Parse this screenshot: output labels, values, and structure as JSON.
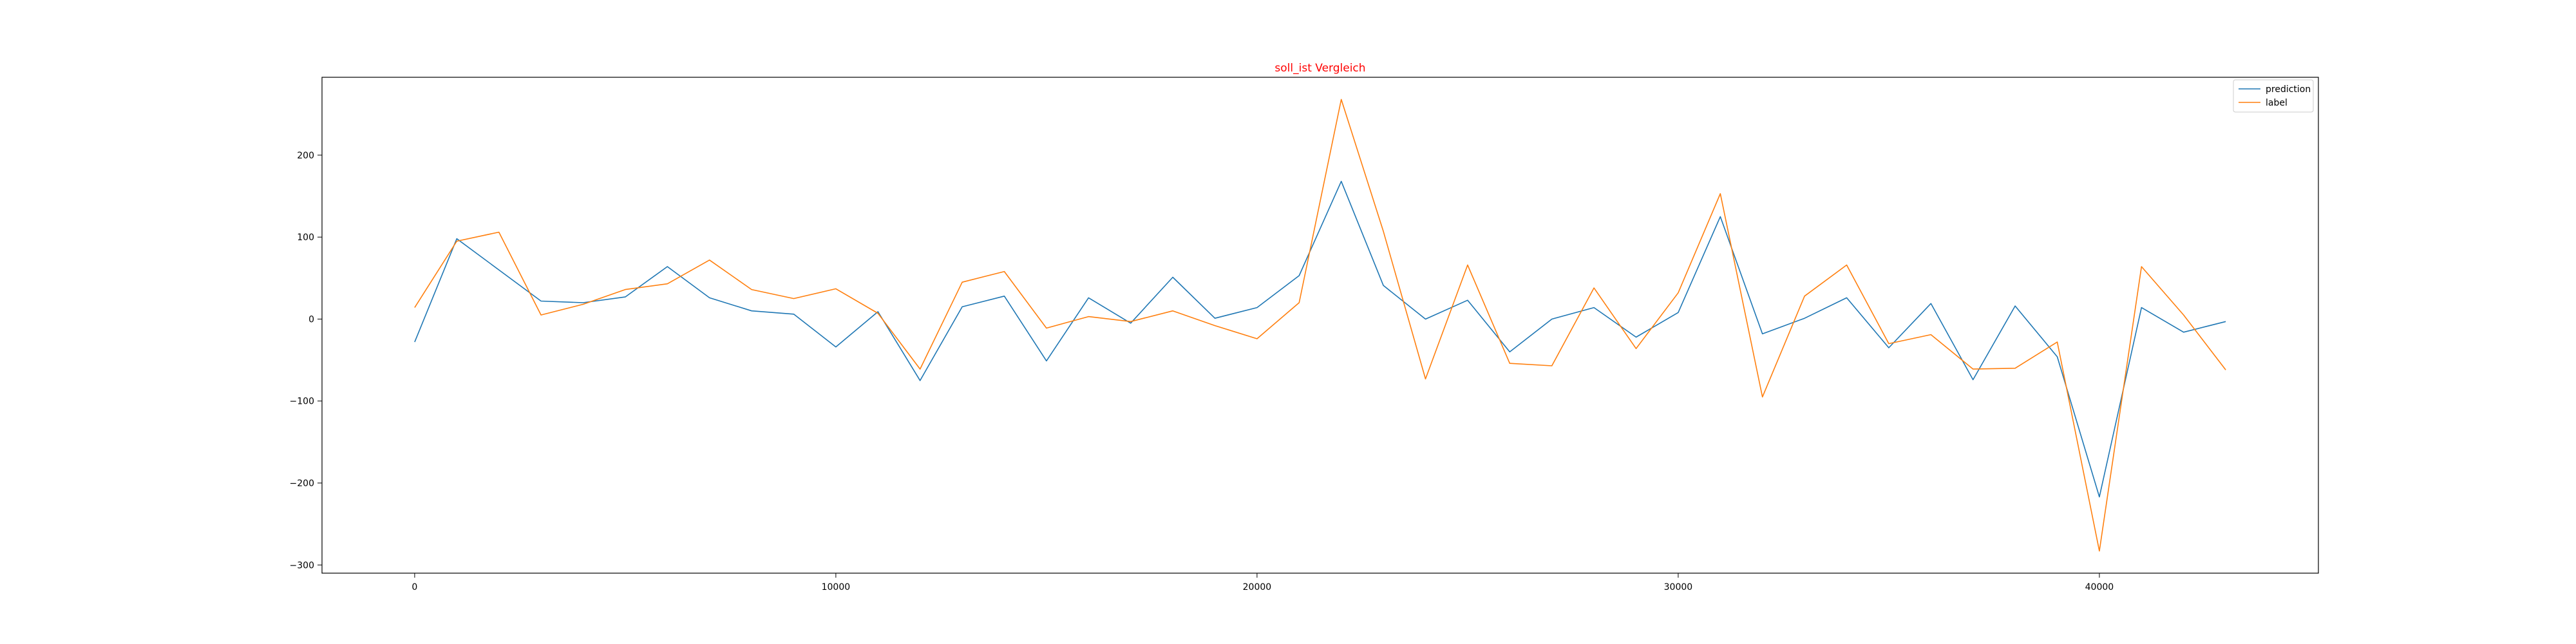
{
  "chart_data": {
    "type": "line",
    "title": "soll_ist Vergleich",
    "title_color": "#ff0000",
    "xlabel": "",
    "ylabel": "",
    "xlim": [
      -2200,
      45200
    ],
    "ylim": [
      -310,
      295
    ],
    "x_ticks": [
      0,
      10000,
      20000,
      30000,
      40000
    ],
    "y_ticks": [
      -300,
      -200,
      -100,
      0,
      100,
      200
    ],
    "grid": false,
    "legend_position": "top-right",
    "x": [
      0,
      1000,
      2000,
      3000,
      4000,
      5000,
      6000,
      7000,
      8000,
      9000,
      10000,
      11000,
      12000,
      13000,
      14000,
      15000,
      16000,
      17000,
      18000,
      19000,
      20000,
      21000,
      22000,
      23000,
      24000,
      25000,
      26000,
      27000,
      28000,
      29000,
      30000,
      31000,
      32000,
      33000,
      34000,
      35000,
      36000,
      37000,
      38000,
      39000,
      40000,
      41000,
      42000,
      43000
    ],
    "series": [
      {
        "name": "prediction",
        "color": "#1f77b4",
        "values": [
          -28,
          98,
          60,
          22,
          20,
          27,
          64,
          26,
          10,
          6,
          -34,
          9,
          -75,
          15,
          28,
          -51,
          26,
          -5,
          51,
          1,
          14,
          53,
          168,
          41,
          0,
          23,
          -40,
          0,
          14,
          -22,
          8,
          125,
          -18,
          1,
          26,
          -35,
          19,
          -74,
          16,
          -46,
          -217,
          14,
          -16,
          -3
        ]
      },
      {
        "name": "label",
        "color": "#ff7f0e",
        "values": [
          14,
          95,
          106,
          5,
          18,
          36,
          43,
          72,
          36,
          25,
          37,
          7,
          -61,
          45,
          58,
          -11,
          3,
          -3,
          10,
          -8,
          -24,
          20,
          268,
          107,
          -73,
          66,
          -54,
          -57,
          38,
          -36,
          32,
          153,
          -95,
          28,
          66,
          -30,
          -19,
          -61,
          -60,
          -28,
          -283,
          64,
          5,
          -62
        ]
      }
    ]
  }
}
